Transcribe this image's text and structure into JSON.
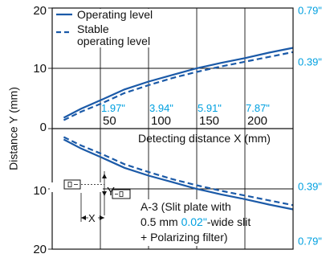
{
  "chart_data": {
    "type": "line",
    "xlabel": "Detecting distance X (mm)",
    "ylabel": "Distance Y (mm)",
    "x_ticks": [
      "50",
      "100",
      "150",
      "200"
    ],
    "x_ticks_inch": [
      "1.97\"",
      "3.94\"",
      "5.91\"",
      "7.87\""
    ],
    "y_ticks_left": [
      "20",
      "10",
      "0",
      "10",
      "20"
    ],
    "y_ticks_right": [
      "0.79\"",
      "0.39\"",
      "0.39\"",
      "0.79\""
    ],
    "xlim": [
      0,
      250
    ],
    "ylim": [
      -20,
      20
    ],
    "grid": true,
    "legend": {
      "position": "top-left",
      "entries": [
        {
          "label": "Operating level",
          "style": "solid"
        },
        {
          "label_line1": "Stable",
          "label_line2": "operating level",
          "style": "dashed"
        }
      ]
    },
    "series": [
      {
        "name": "Operating level",
        "style": "solid",
        "color": "#1b5aa8",
        "upper": [
          [
            12,
            1.8
          ],
          [
            30,
            3.3
          ],
          [
            50,
            4.7
          ],
          [
            75,
            6.5
          ],
          [
            100,
            7.8
          ],
          [
            125,
            8.9
          ],
          [
            150,
            10.0
          ],
          [
            175,
            10.9
          ],
          [
            200,
            11.7
          ],
          [
            225,
            12.6
          ],
          [
            250,
            13.4
          ]
        ],
        "lower": [
          [
            12,
            -1.8
          ],
          [
            30,
            -3.3
          ],
          [
            50,
            -4.7
          ],
          [
            75,
            -6.5
          ],
          [
            100,
            -7.8
          ],
          [
            125,
            -8.9
          ],
          [
            150,
            -10.0
          ],
          [
            175,
            -10.9
          ],
          [
            200,
            -11.7
          ],
          [
            225,
            -12.6
          ],
          [
            250,
            -13.4
          ]
        ]
      },
      {
        "name": "Stable operating level",
        "style": "dashed",
        "color": "#1b5aa8",
        "upper": [
          [
            12,
            1.4
          ],
          [
            30,
            2.8
          ],
          [
            50,
            4.1
          ],
          [
            75,
            5.9
          ],
          [
            100,
            7.2
          ],
          [
            125,
            8.4
          ],
          [
            150,
            9.4
          ],
          [
            175,
            10.3
          ],
          [
            200,
            11.1
          ],
          [
            225,
            11.9
          ],
          [
            250,
            12.7
          ]
        ],
        "lower": [
          [
            12,
            -1.4
          ],
          [
            30,
            -2.8
          ],
          [
            50,
            -4.1
          ],
          [
            75,
            -5.9
          ],
          [
            100,
            -7.2
          ],
          [
            125,
            -8.4
          ],
          [
            150,
            -9.4
          ],
          [
            175,
            -10.3
          ],
          [
            200,
            -11.1
          ],
          [
            225,
            -11.9
          ],
          [
            250,
            -12.7
          ]
        ]
      }
    ],
    "annotation": {
      "line1": "A-3 (Slit plate with",
      "line2_pre": "0.5 mm ",
      "line2_cyan": "0.02\"",
      "line2_post": "-wide slit",
      "line3": "+ Polarizing filter)",
      "y_symbol": "Y",
      "x_symbol": "X"
    },
    "colors": {
      "curve": "#1b5aa8",
      "inch": "#00a0e0",
      "axis": "#111111"
    }
  }
}
